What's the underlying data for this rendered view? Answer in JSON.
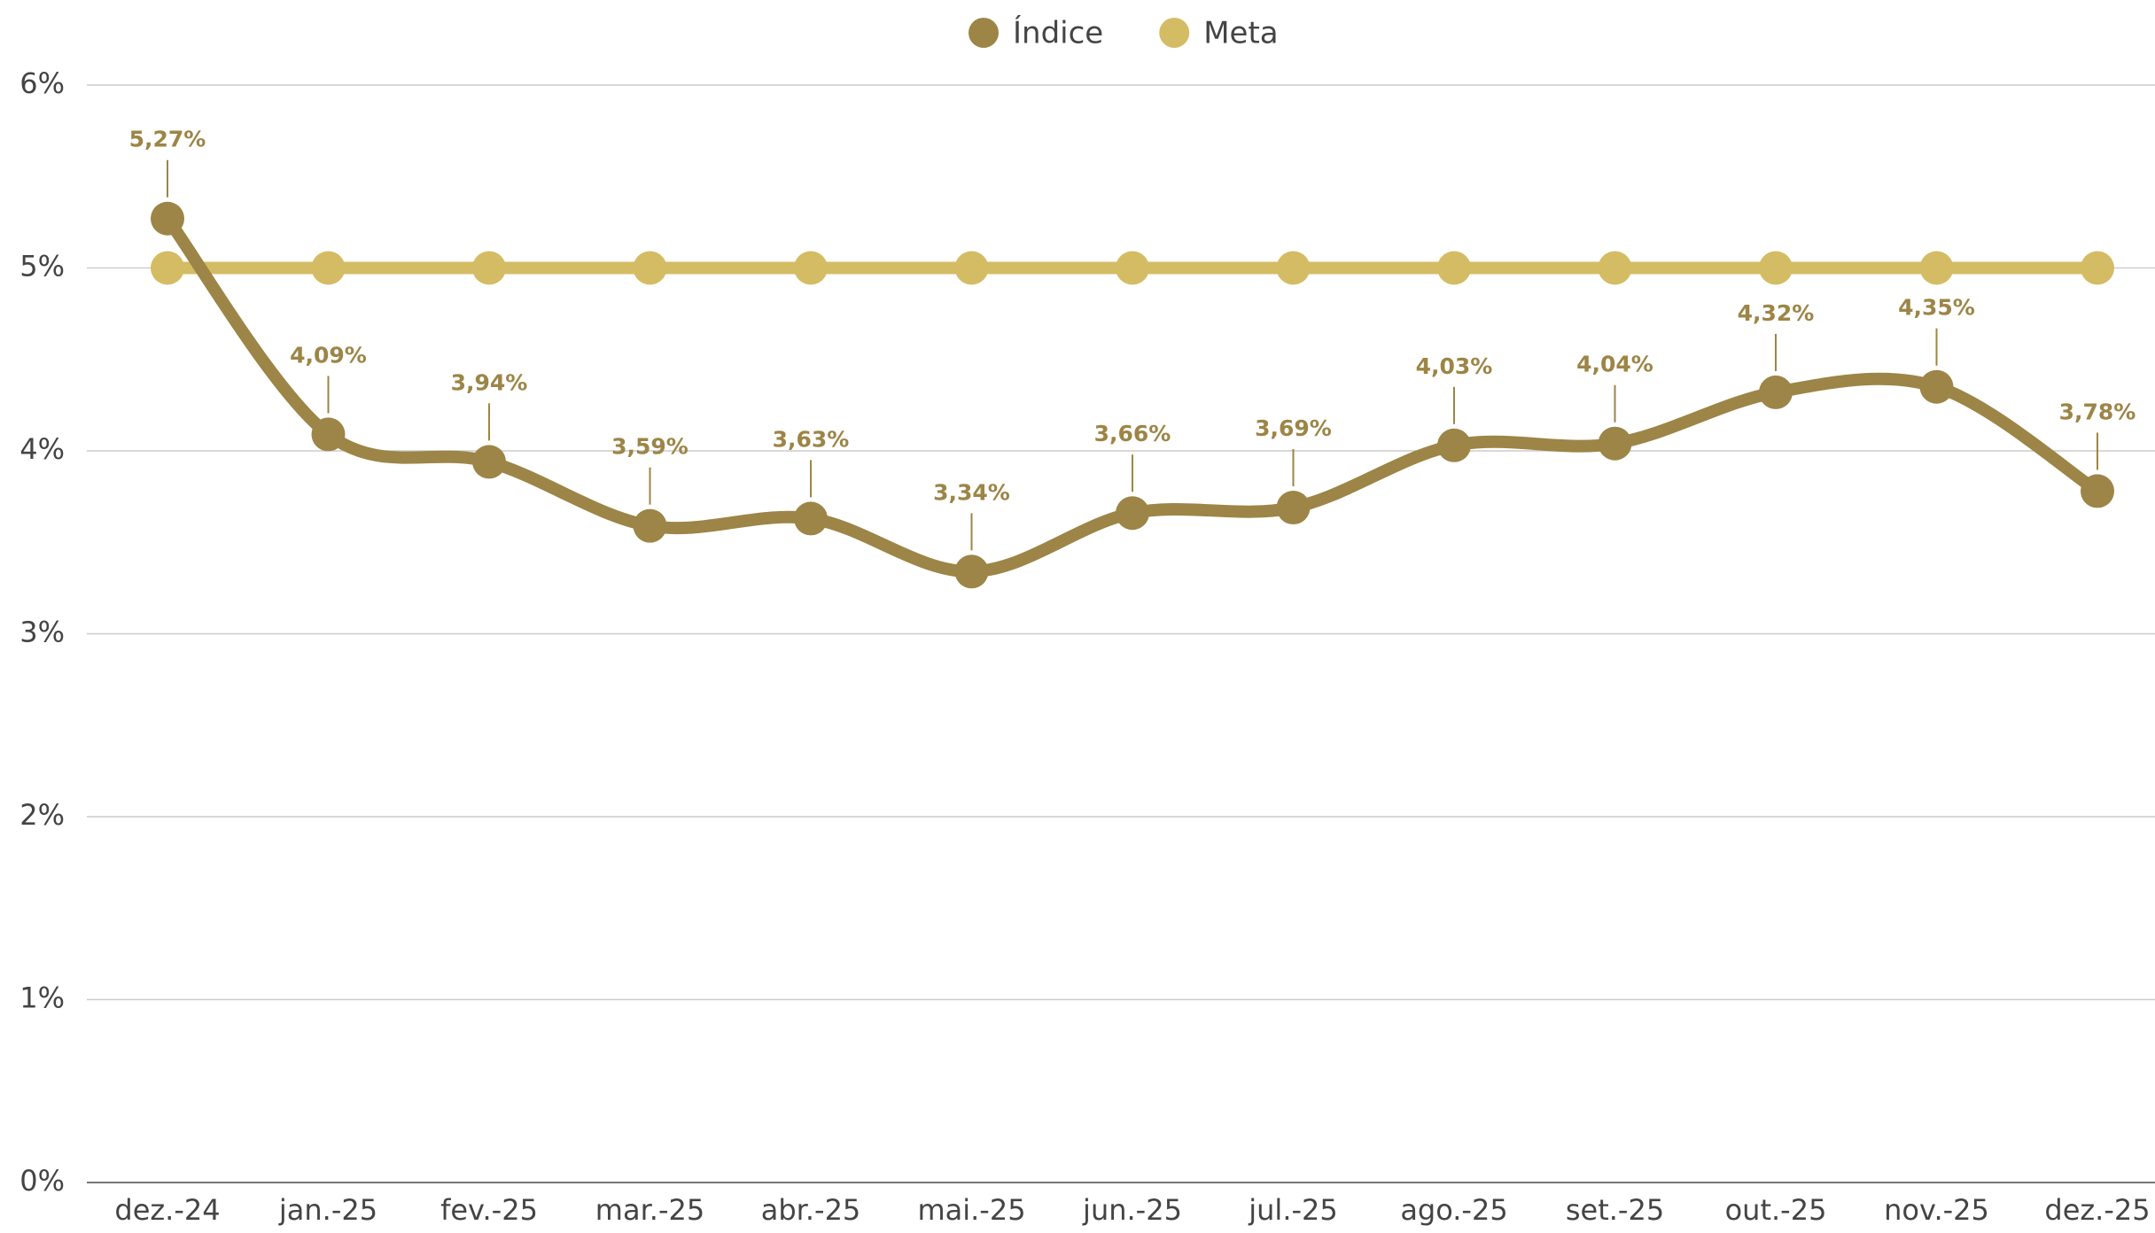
{
  "chart_data": {
    "type": "line",
    "categories": [
      "dez.-24",
      "jan.-25",
      "fev.-25",
      "mar.-25",
      "abr.-25",
      "mai.-25",
      "jun.-25",
      "jul.-25",
      "ago.-25",
      "set.-25",
      "out.-25",
      "nov.-25",
      "dez.-25"
    ],
    "series": [
      {
        "name": "Índice",
        "color": "#9c8546",
        "values": [
          5.27,
          4.09,
          3.94,
          3.59,
          3.63,
          3.34,
          3.66,
          3.69,
          4.03,
          4.04,
          4.32,
          4.35,
          3.78
        ],
        "value_labels": [
          "5,27%",
          "4,09%",
          "3,94%",
          "3,59%",
          "3,63%",
          "3,34%",
          "3,66%",
          "3,69%",
          "4,03%",
          "4,04%",
          "4,32%",
          "4,35%",
          "3,78%"
        ]
      },
      {
        "name": "Meta",
        "color": "#d4bc64",
        "values": [
          5,
          5,
          5,
          5,
          5,
          5,
          5,
          5,
          5,
          5,
          5,
          5,
          5
        ]
      }
    ],
    "ylim": [
      0,
      6
    ],
    "yticks": [
      {
        "value": 0,
        "label": "0%"
      },
      {
        "value": 1,
        "label": "1%"
      },
      {
        "value": 2,
        "label": "2%"
      },
      {
        "value": 3,
        "label": "3%"
      },
      {
        "value": 4,
        "label": "4%"
      },
      {
        "value": 5,
        "label": "5%"
      },
      {
        "value": 6,
        "label": "6%"
      }
    ],
    "grid": true,
    "smooth": true,
    "legend": "top"
  }
}
